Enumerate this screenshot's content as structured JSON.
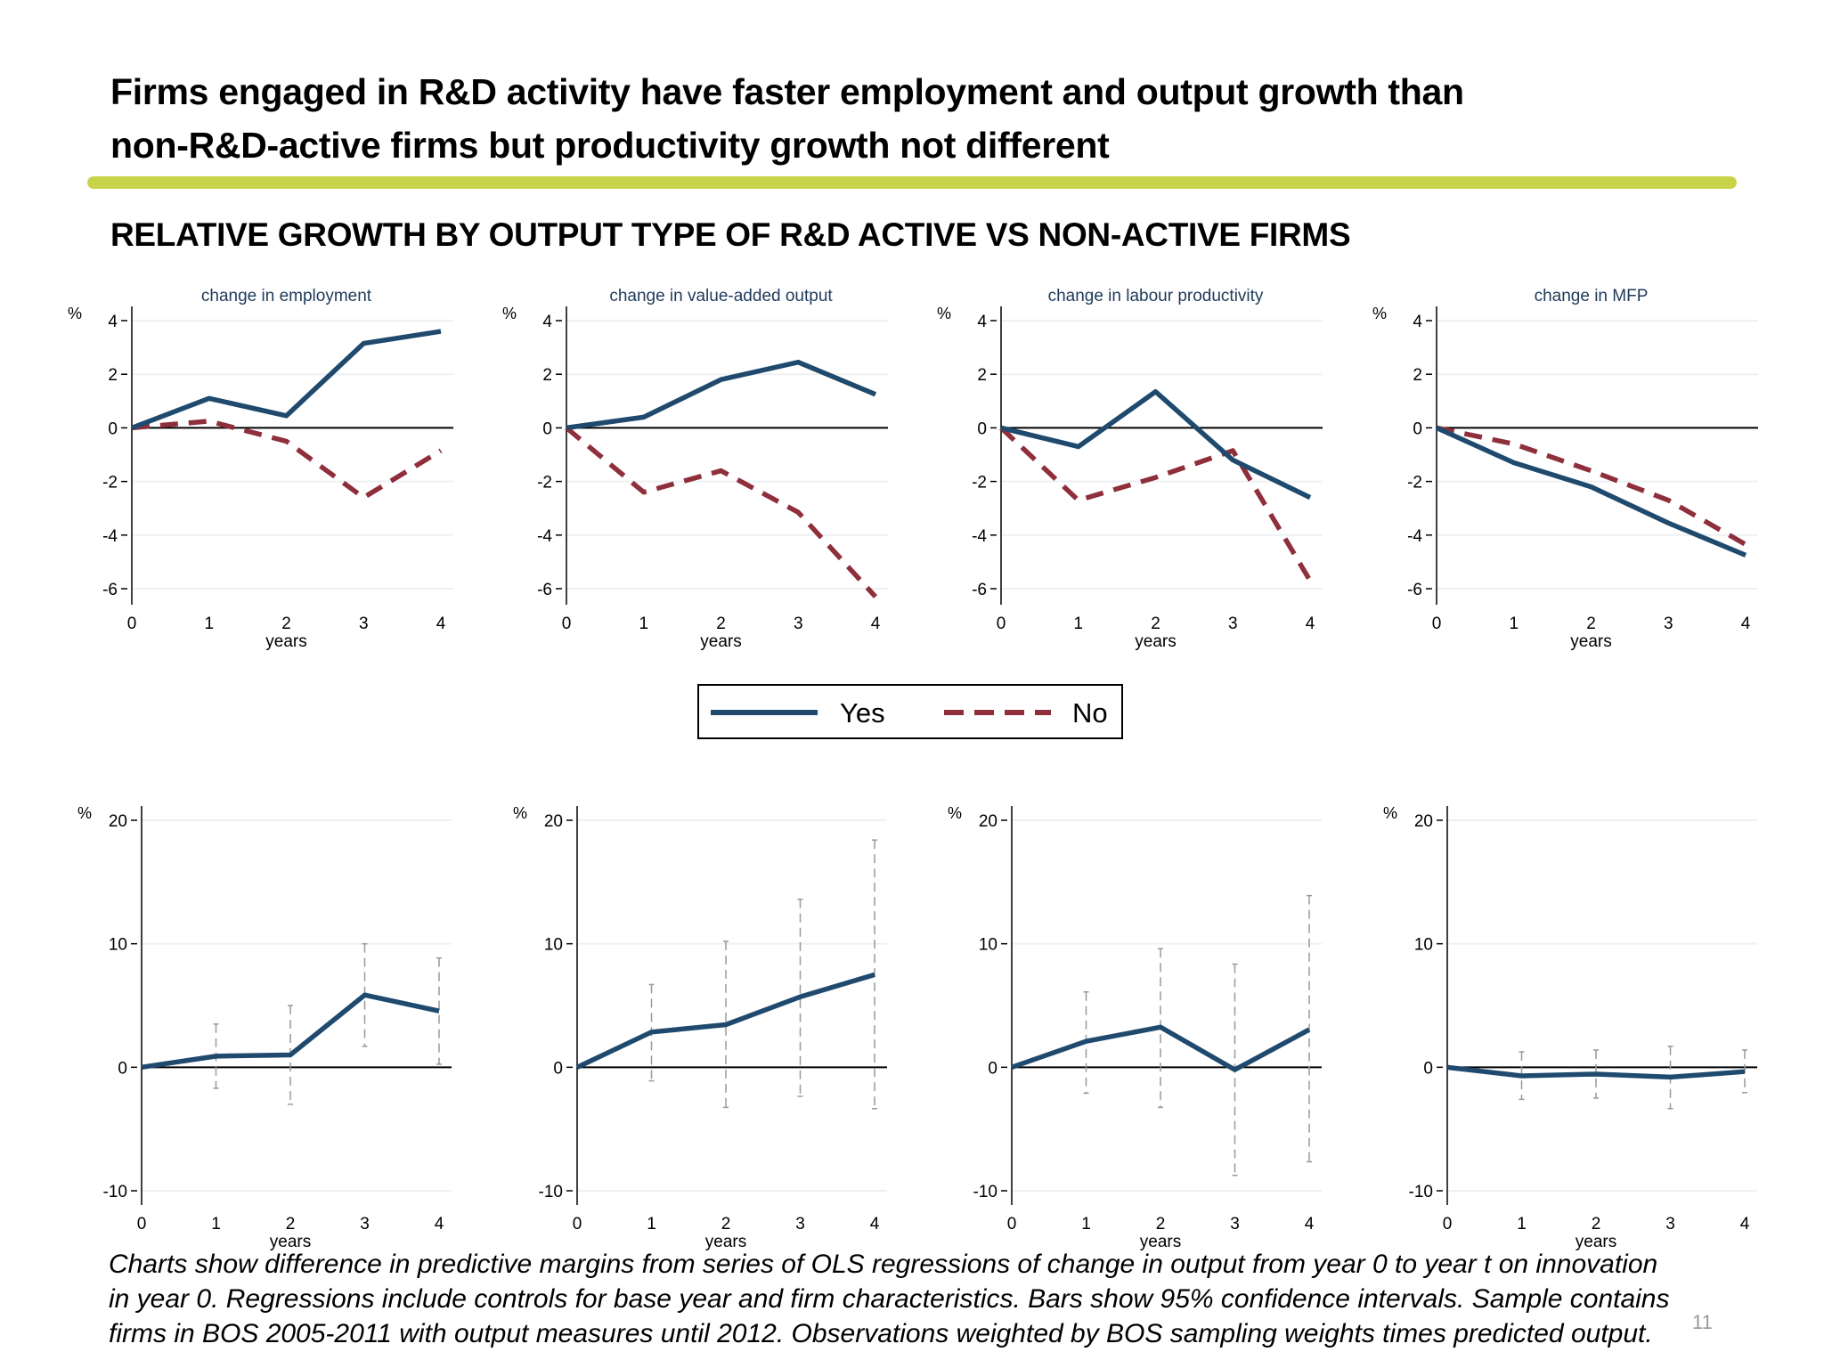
{
  "title_lines": [
    "Firms engaged in R&D activity have faster employment and output growth than",
    "non-R&D-active firms but productivity growth not different"
  ],
  "subtitle": "RELATIVE GROWTH BY OUTPUT TYPE OF R&D ACTIVE VS NON-ACTIVE FIRMS",
  "colors": {
    "accent_rule": "#c9d34a",
    "yes": "#1f4a6e",
    "no": "#8e2f3b",
    "ci": "#999999"
  },
  "legend": {
    "yes": "Yes",
    "no": "No"
  },
  "caption_lines": [
    "Charts show difference in predictive margins from series of OLS regressions of change in output from year 0 to year t on innovation",
    "in year 0. Regressions include controls for base year and firm characteristics. Bars show 95% confidence intervals. Sample contains",
    "firms in BOS 2005-2011 with output measures until 2012. Observations weighted by BOS sampling weights times predicted output."
  ],
  "page_number": "11",
  "chart_data": [
    {
      "type": "line",
      "title": "change in employment",
      "xlabel": "years",
      "ylabel": "%",
      "x": [
        0,
        1,
        2,
        3,
        4
      ],
      "xlim": [
        0,
        4
      ],
      "ylim": [
        -6.7,
        4.5
      ],
      "yticks": [
        4,
        2,
        0,
        -2,
        -4,
        -6
      ],
      "grid": true,
      "series": [
        {
          "name": "Yes",
          "values": [
            0,
            1.1,
            0.45,
            3.15,
            3.6
          ]
        },
        {
          "name": "No",
          "values": [
            0,
            0.25,
            -0.5,
            -2.6,
            -0.85
          ]
        }
      ]
    },
    {
      "type": "line",
      "title": "change in value-added output",
      "xlabel": "years",
      "ylabel": "%",
      "x": [
        0,
        1,
        2,
        3,
        4
      ],
      "xlim": [
        0,
        4
      ],
      "ylim": [
        -6.7,
        4.5
      ],
      "yticks": [
        4,
        2,
        0,
        -2,
        -4,
        -6
      ],
      "grid": true,
      "series": [
        {
          "name": "Yes",
          "values": [
            0,
            0.4,
            1.8,
            2.45,
            1.25
          ]
        },
        {
          "name": "No",
          "values": [
            0,
            -2.4,
            -1.6,
            -3.15,
            -6.3
          ]
        }
      ]
    },
    {
      "type": "line",
      "title": "change in labour productivity",
      "xlabel": "years",
      "ylabel": "%",
      "x": [
        0,
        1,
        2,
        3,
        4
      ],
      "xlim": [
        0,
        4
      ],
      "ylim": [
        -6.7,
        4.5
      ],
      "yticks": [
        4,
        2,
        0,
        -2,
        -4,
        -6
      ],
      "grid": true,
      "series": [
        {
          "name": "Yes",
          "values": [
            0,
            -0.7,
            1.35,
            -1.2,
            -2.6
          ]
        },
        {
          "name": "No",
          "values": [
            0,
            -2.7,
            -1.85,
            -0.85,
            -5.7
          ]
        }
      ]
    },
    {
      "type": "line",
      "title": "change in MFP",
      "xlabel": "years",
      "ylabel": "%",
      "x": [
        0,
        1,
        2,
        3,
        4
      ],
      "xlim": [
        0,
        4
      ],
      "ylim": [
        -6.7,
        4.5
      ],
      "yticks": [
        4,
        2,
        0,
        -2,
        -4,
        -6
      ],
      "grid": true,
      "series": [
        {
          "name": "Yes",
          "values": [
            0,
            -1.3,
            -2.2,
            -3.55,
            -4.75
          ]
        },
        {
          "name": "No",
          "values": [
            0,
            -0.6,
            -1.6,
            -2.7,
            -4.35
          ]
        }
      ]
    },
    {
      "type": "line",
      "xlabel": "years",
      "ylabel": "%",
      "x": [
        0,
        1,
        2,
        3,
        4
      ],
      "xlim": [
        0,
        4
      ],
      "ylim": [
        -11,
        21
      ],
      "yticks": [
        20,
        10,
        0,
        -10
      ],
      "grid": true,
      "series": [
        {
          "values": [
            0,
            0.9,
            1.0,
            5.85,
            4.55
          ]
        }
      ],
      "ci_upper": [
        null,
        3.5,
        5.0,
        10.0,
        8.85
      ],
      "ci_lower": [
        null,
        -1.7,
        -3.0,
        1.7,
        0.25
      ]
    },
    {
      "type": "line",
      "xlabel": "years",
      "ylabel": "%",
      "x": [
        0,
        1,
        2,
        3,
        4
      ],
      "xlim": [
        0,
        4
      ],
      "ylim": [
        -11,
        21
      ],
      "yticks": [
        20,
        10,
        0,
        -10
      ],
      "grid": true,
      "series": [
        {
          "values": [
            0,
            2.85,
            3.45,
            5.7,
            7.5
          ]
        }
      ],
      "ci_upper": [
        null,
        6.7,
        10.2,
        13.6,
        18.4
      ],
      "ci_lower": [
        null,
        -1.1,
        -3.25,
        -2.35,
        -3.35
      ]
    },
    {
      "type": "line",
      "xlabel": "years",
      "ylabel": "%",
      "x": [
        0,
        1,
        2,
        3,
        4
      ],
      "xlim": [
        0,
        4
      ],
      "ylim": [
        -11,
        21
      ],
      "yticks": [
        20,
        10,
        0,
        -10
      ],
      "grid": true,
      "series": [
        {
          "values": [
            0,
            2.1,
            3.25,
            -0.2,
            3.05
          ]
        }
      ],
      "ci_upper": [
        null,
        6.1,
        9.6,
        8.35,
        13.9
      ],
      "ci_lower": [
        null,
        -2.1,
        -3.25,
        -8.75,
        -7.65
      ]
    },
    {
      "type": "line",
      "xlabel": "years",
      "ylabel": "%",
      "x": [
        0,
        1,
        2,
        3,
        4
      ],
      "xlim": [
        0,
        4
      ],
      "ylim": [
        -11,
        21
      ],
      "yticks": [
        20,
        10,
        0,
        -10
      ],
      "grid": true,
      "series": [
        {
          "values": [
            0,
            -0.7,
            -0.55,
            -0.8,
            -0.35
          ]
        }
      ],
      "ci_upper": [
        null,
        1.25,
        1.4,
        1.7,
        1.4
      ],
      "ci_lower": [
        null,
        -2.6,
        -2.5,
        -3.35,
        -2.05
      ]
    }
  ]
}
